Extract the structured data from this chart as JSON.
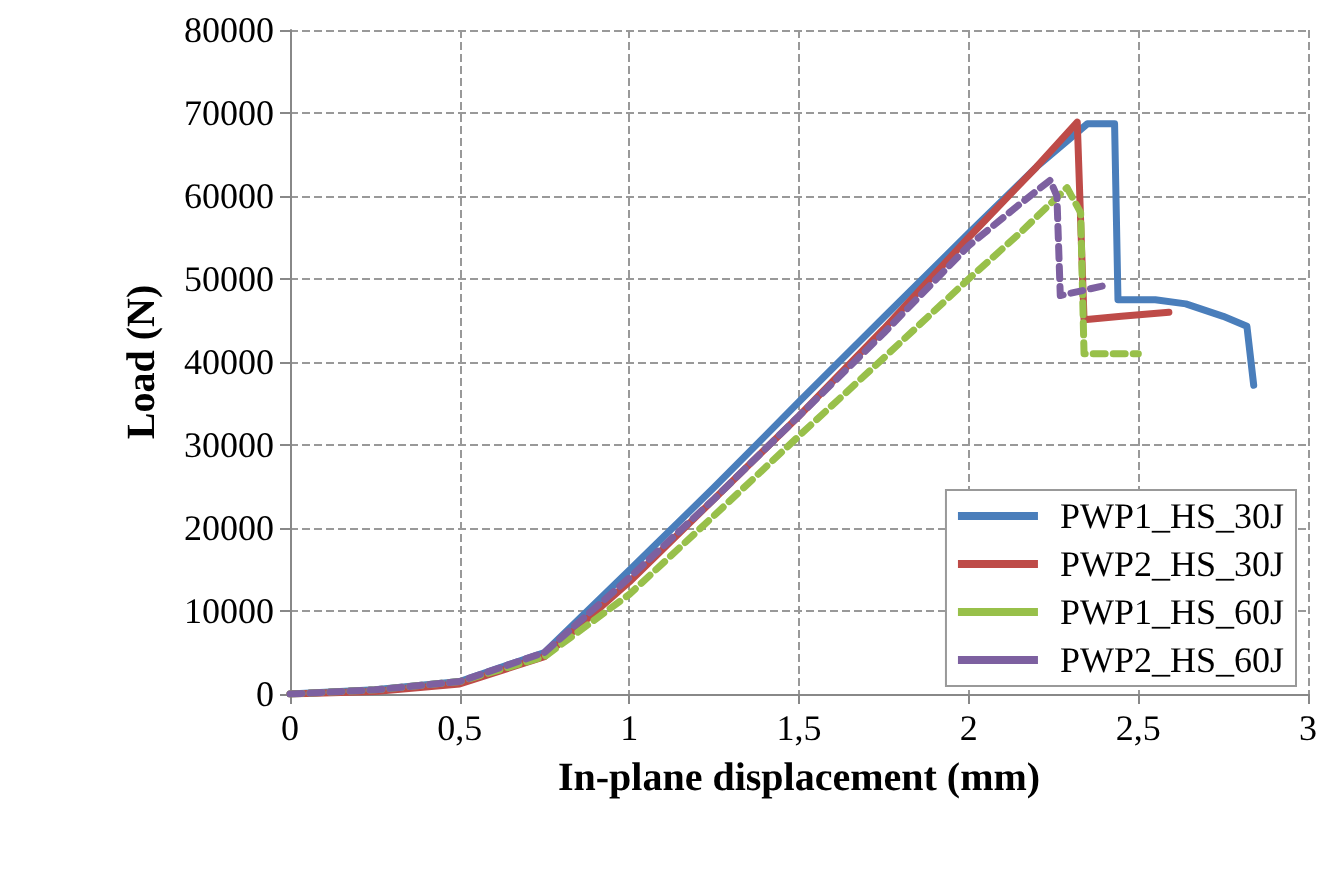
{
  "chart_data": {
    "type": "line",
    "xlabel": "In-plane displacement (mm)",
    "ylabel": "Load (N)",
    "xlim": [
      0,
      3
    ],
    "xticks": [
      {
        "value": 0,
        "label": "0"
      },
      {
        "value": 0.5,
        "label": "0,5"
      },
      {
        "value": 1,
        "label": "1"
      },
      {
        "value": 1.5,
        "label": "1,5"
      },
      {
        "value": 2,
        "label": "2"
      },
      {
        "value": 2.5,
        "label": "2,5"
      },
      {
        "value": 3,
        "label": "3"
      }
    ],
    "ylim": [
      0,
      80000
    ],
    "yticks": [
      0,
      10000,
      20000,
      30000,
      40000,
      50000,
      60000,
      70000,
      80000
    ],
    "grid": true,
    "legend": "bottom right",
    "marker": "none",
    "series": [
      {
        "name": "PWP1_HS_30J",
        "color": "#4a7ebb",
        "line_style": "solid",
        "x": [
          0,
          0.25,
          0.5,
          0.75,
          1,
          1.25,
          1.5,
          1.75,
          2,
          2.2,
          2.35,
          2.43,
          2.44,
          2.55,
          2.64,
          2.75,
          2.82,
          2.84
        ],
        "values": [
          0,
          500,
          1500,
          5000,
          14900,
          24900,
          35200,
          45400,
          55500,
          63500,
          68700,
          68700,
          47500,
          47500,
          47000,
          45500,
          44300,
          37200
        ]
      },
      {
        "name": "PWP2_HS_30J",
        "color": "#be4b48",
        "line_style": "solid",
        "x": [
          0,
          0.25,
          0.5,
          0.75,
          1,
          1.25,
          1.5,
          1.75,
          2,
          2.2,
          2.32,
          2.34,
          2.45,
          2.59
        ],
        "values": [
          0,
          300,
          1200,
          4500,
          13500,
          23500,
          33500,
          44000,
          55000,
          63500,
          68900,
          45100,
          45500,
          46000
        ]
      },
      {
        "name": "PWP1_HS_60J",
        "color": "#98c04a",
        "line_style": "dashed",
        "x": [
          0,
          0.25,
          0.5,
          0.75,
          1,
          1.25,
          1.5,
          1.75,
          2,
          2.15,
          2.29,
          2.33,
          2.34,
          2.5
        ],
        "values": [
          0,
          500,
          1500,
          4500,
          12000,
          21500,
          31100,
          40500,
          50000,
          55500,
          61000,
          58000,
          41000,
          41000
        ]
      },
      {
        "name": "PWP2_HS_60J",
        "color": "#7d60a0",
        "line_style": "dashed",
        "x": [
          0,
          0.25,
          0.5,
          0.75,
          1,
          1.25,
          1.5,
          1.75,
          2,
          2.15,
          2.24,
          2.26,
          2.27,
          2.4
        ],
        "values": [
          0,
          500,
          1500,
          5000,
          14000,
          23500,
          33500,
          43500,
          54000,
          59000,
          61900,
          60000,
          48000,
          49200
        ]
      }
    ]
  }
}
